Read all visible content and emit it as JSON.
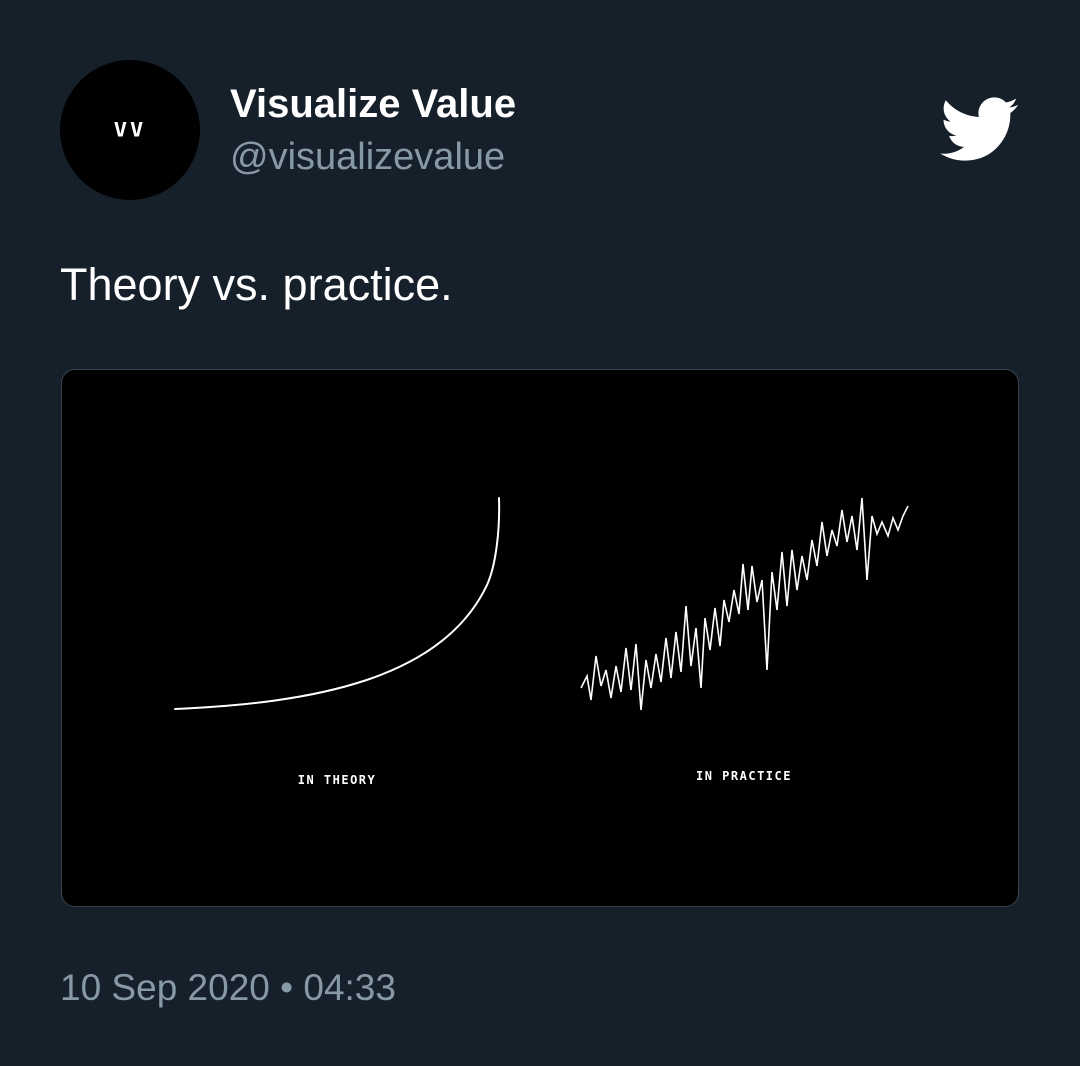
{
  "theme": {
    "background": "#15202b",
    "text_primary": "#ffffff",
    "text_secondary": "#8899a6",
    "media_background": "#000000",
    "media_border": "#38444d"
  },
  "author": {
    "avatar_text": "VV",
    "display_name": "Visualize Value",
    "handle": "@visualizevalue"
  },
  "platform_icon": "twitter-bird-icon",
  "tweet": {
    "text": "Theory vs. practice."
  },
  "media": {
    "theory_caption": "IN THEORY",
    "practice_caption": "IN PRACTICE"
  },
  "meta": {
    "timestamp": "10 Sep 2020 • 04:33"
  }
}
